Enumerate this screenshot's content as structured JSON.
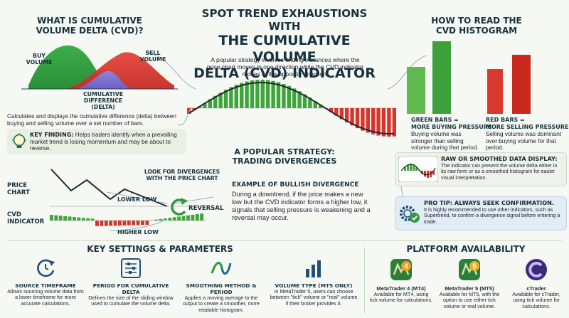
{
  "main_title": {
    "line1": "SPOT TREND EXHAUSTIONS WITH",
    "line2": "THE CUMULATIVE VOLUME",
    "line3": "DELTA (CVD) INDICATOR",
    "intro": "A popular strategy involves finding instances where the price chart moves in one direction while the CVD indicator moves in the opposite direction."
  },
  "what_is": {
    "title_line1": "WHAT IS CUMULATIVE",
    "title_line2": "VOLUME DELTA (CVD)?",
    "buy_label_1": "BUY",
    "buy_label_2": "VOLUME",
    "sell_label_1": "SELL",
    "sell_label_2": "VOLUME",
    "delta_label_1": "CUMULATIVE",
    "delta_label_2": "DIFFERENCE",
    "delta_label_3": "(DELTA)",
    "description": "Calculates and displays the cumulative difference (delta) between buying and selling volume over a set number of bars.",
    "key_finding_label": "KEY FINDING:",
    "key_finding_text": "Helps traders identify when a prevailing market trend is losing momentum and may be about to reverse.",
    "bulb_icon": "lightbulb-icon"
  },
  "divergence_chart": {
    "price_label_1": "PRICE",
    "price_label_2": "CHART",
    "cvd_label_1": "CVD",
    "cvd_label_2": "INDICATOR",
    "look_for_1": "LOOK FOR DIVERGENCES",
    "look_for_2": "WITH THE PRICE CHART",
    "lower_low": "LOWER LOW",
    "higher_low": "HIGHER LOW",
    "reversal": "REVERSAL"
  },
  "strategy": {
    "title_line1": "A POPULAR STRATEGY:",
    "title_line2": "TRADING DIVERGENCES",
    "example_title": "EXAMPLE OF BULLISH DIVERGENCE",
    "example_text": "During a downtrend, if the price makes a new low but the CVD indicator forms a higher low, it signals that selling pressure is weakening and a reversal may occur."
  },
  "how_to_read": {
    "title_line1": "HOW TO READ THE",
    "title_line2": "CVD HISTOGRAM",
    "green_title_1": "GREEN BARS =",
    "green_title_2": "MORE BUYING PRESSURE",
    "green_text": "Buying volume was stronger than selling volume during that period.",
    "red_title_1": "RED BARS =",
    "red_title_2": "MORE SELLING PRESSURE",
    "red_text": "Selling volume was dominant over buying volume for that period.",
    "raw_title": "RAW OR SMOOTHED DATA DISPLAY:",
    "raw_text": "The indicator can present the volume delta either in its raw form or as a smoothed histogram for easier visual interpretation.",
    "pro_tip_title": "PRO TIP: ALWAYS SEEK CONFIRMATION.",
    "pro_tip_text": "It is highly recommended to use other indicators, such as Supertrend, to confirm a divergence signal before entering a trade.",
    "colors": {
      "green": "#3fa53a",
      "red": "#d8352c"
    }
  },
  "key_settings": {
    "title": "KEY SETTINGS & PARAMETERS",
    "items": [
      {
        "icon": "clock-refresh-icon",
        "title": "SOURCE TIMEFRAME",
        "text": "Allows sourcing volume data from a lower timeframe for more accurate calculations."
      },
      {
        "icon": "sliders-icon",
        "title": "PERIOD FOR CUMULATIVE DELTA",
        "text": "Defines the size of the sliding window used to cumulate the volume delta."
      },
      {
        "icon": "wave-icon",
        "title": "SMOOTHING METHOD & PERIOD",
        "text": "Applies a moving average to the output to create a smoother, more readable histogram."
      },
      {
        "icon": "volume-bars-icon",
        "title": "VOLUME TYPE (MT5 ONLY)",
        "text": "In MetaTrader 5, users can choose between \"tick\" volume or \"real\" volume if their broker provides it."
      }
    ]
  },
  "platforms": {
    "title": "PLATFORM AVAILABILITY",
    "items": [
      {
        "icon": "metatrader-4-icon",
        "badge": "4",
        "title": "MetaTrader 4 (MT4)",
        "text": "Available for MT4, using tick volume for calculations."
      },
      {
        "icon": "metatrader-5-icon",
        "badge": "5",
        "title": "MetaTrader 5 (MT5)",
        "text": "Available for MT5, with the option to use either tick volume or real volume."
      },
      {
        "icon": "ctrader-icon",
        "badge": "",
        "title": "cTrader",
        "text": "Available for cTrader, using tick volume for calculations."
      }
    ]
  }
}
